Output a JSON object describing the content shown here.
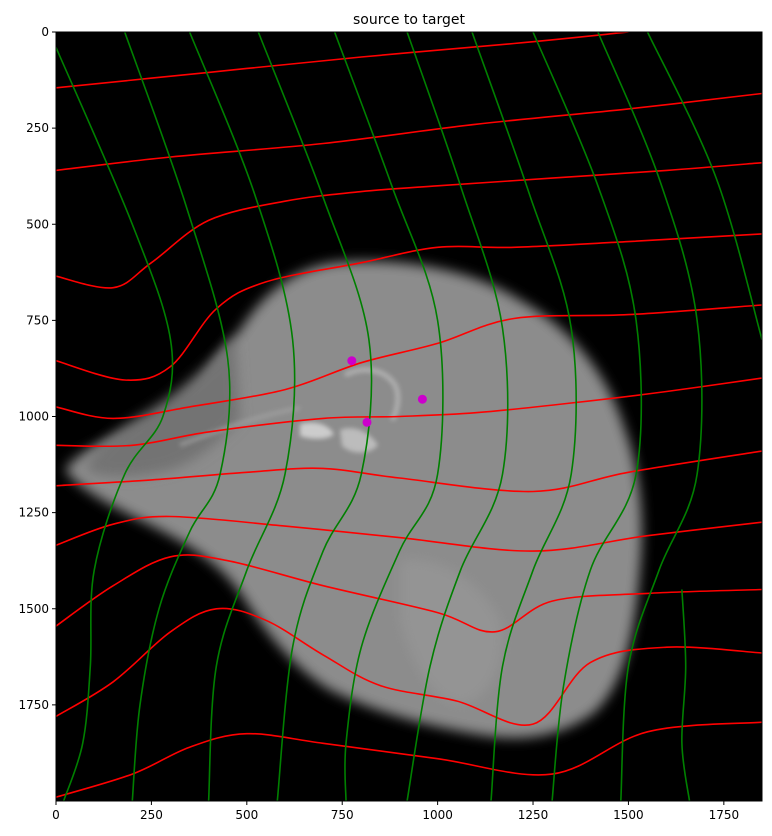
{
  "chart_data": {
    "type": "image",
    "title": "source to target",
    "xlabel": "",
    "ylabel": "",
    "xlim": [
      0,
      1850
    ],
    "ylim": [
      2000,
      0
    ],
    "y_inverted": true,
    "grid": false,
    "x_ticks": [
      0,
      250,
      500,
      750,
      1000,
      1250,
      1500,
      1750
    ],
    "y_ticks": [
      0,
      250,
      500,
      750,
      1000,
      1250,
      1500,
      1750
    ],
    "background": "#000000",
    "colors": {
      "horizontal_grid_lines": "#ff0000",
      "vertical_grid_lines": "#008000",
      "landmarks": "#cc00cc",
      "tissue": "#8c8c8c"
    },
    "landmarks": [
      {
        "x": 775,
        "y": 855
      },
      {
        "x": 960,
        "y": 955
      },
      {
        "x": 815,
        "y": 1015
      }
    ],
    "red_lines": [
      [
        [
          0,
          145
        ],
        [
          400,
          105
        ],
        [
          800,
          65
        ],
        [
          1200,
          30
        ],
        [
          1500,
          0
        ]
      ],
      [
        [
          0,
          360
        ],
        [
          300,
          325
        ],
        [
          700,
          290
        ],
        [
          1100,
          240
        ],
        [
          1500,
          200
        ],
        [
          1850,
          160
        ]
      ],
      [
        [
          0,
          635
        ],
        [
          150,
          665
        ],
        [
          250,
          600
        ],
        [
          400,
          490
        ],
        [
          600,
          440
        ],
        [
          800,
          415
        ],
        [
          1000,
          400
        ],
        [
          1300,
          380
        ],
        [
          1600,
          360
        ],
        [
          1850,
          340
        ]
      ],
      [
        [
          0,
          855
        ],
        [
          180,
          905
        ],
        [
          300,
          870
        ],
        [
          420,
          720
        ],
        [
          550,
          650
        ],
        [
          800,
          600
        ],
        [
          1000,
          560
        ],
        [
          1200,
          560
        ],
        [
          1500,
          545
        ],
        [
          1850,
          525
        ]
      ],
      [
        [
          0,
          975
        ],
        [
          150,
          1005
        ],
        [
          350,
          975
        ],
        [
          600,
          930
        ],
        [
          800,
          860
        ],
        [
          1000,
          810
        ],
        [
          1200,
          745
        ],
        [
          1500,
          735
        ],
        [
          1850,
          710
        ]
      ],
      [
        [
          0,
          1075
        ],
        [
          200,
          1075
        ],
        [
          400,
          1040
        ],
        [
          700,
          1005
        ],
        [
          900,
          1000
        ],
        [
          1100,
          990
        ],
        [
          1350,
          965
        ],
        [
          1600,
          935
        ],
        [
          1850,
          900
        ]
      ],
      [
        [
          0,
          1180
        ],
        [
          250,
          1165
        ],
        [
          500,
          1145
        ],
        [
          700,
          1135
        ],
        [
          900,
          1160
        ],
        [
          1250,
          1195
        ],
        [
          1500,
          1145
        ],
        [
          1850,
          1090
        ]
      ],
      [
        [
          0,
          1335
        ],
        [
          150,
          1280
        ],
        [
          300,
          1260
        ],
        [
          600,
          1285
        ],
        [
          900,
          1315
        ],
        [
          1250,
          1350
        ],
        [
          1550,
          1310
        ],
        [
          1850,
          1275
        ]
      ],
      [
        [
          0,
          1545
        ],
        [
          150,
          1440
        ],
        [
          300,
          1365
        ],
        [
          450,
          1375
        ],
        [
          700,
          1440
        ],
        [
          1000,
          1510
        ],
        [
          1150,
          1560
        ],
        [
          1300,
          1480
        ],
        [
          1550,
          1460
        ],
        [
          1850,
          1450
        ]
      ],
      [
        [
          0,
          1780
        ],
        [
          150,
          1690
        ],
        [
          300,
          1560
        ],
        [
          420,
          1500
        ],
        [
          550,
          1530
        ],
        [
          700,
          1620
        ],
        [
          850,
          1700
        ],
        [
          1050,
          1740
        ],
        [
          1250,
          1800
        ],
        [
          1400,
          1640
        ],
        [
          1600,
          1600
        ],
        [
          1850,
          1615
        ]
      ],
      [
        [
          0,
          1990
        ],
        [
          200,
          1930
        ],
        [
          350,
          1860
        ],
        [
          500,
          1825
        ],
        [
          700,
          1850
        ],
        [
          1000,
          1890
        ],
        [
          1300,
          1930
        ],
        [
          1550,
          1820
        ],
        [
          1850,
          1795
        ]
      ]
    ],
    "green_lines": [
      [
        [
          0,
          40
        ],
        [
          200,
          500
        ],
        [
          300,
          800
        ],
        [
          280,
          1000
        ],
        [
          180,
          1150
        ],
        [
          100,
          1400
        ],
        [
          90,
          1650
        ],
        [
          70,
          1850
        ],
        [
          20,
          2000
        ]
      ],
      [
        [
          180,
          0
        ],
        [
          340,
          450
        ],
        [
          450,
          850
        ],
        [
          430,
          1150
        ],
        [
          350,
          1300
        ],
        [
          270,
          1500
        ],
        [
          220,
          1750
        ],
        [
          200,
          2000
        ]
      ],
      [
        [
          350,
          0
        ],
        [
          520,
          420
        ],
        [
          620,
          800
        ],
        [
          600,
          1150
        ],
        [
          500,
          1400
        ],
        [
          420,
          1650
        ],
        [
          400,
          2000
        ]
      ],
      [
        [
          530,
          0
        ],
        [
          700,
          430
        ],
        [
          820,
          800
        ],
        [
          800,
          1150
        ],
        [
          700,
          1350
        ],
        [
          620,
          1600
        ],
        [
          580,
          2000
        ]
      ],
      [
        [
          730,
          0
        ],
        [
          880,
          400
        ],
        [
          1000,
          750
        ],
        [
          1000,
          1150
        ],
        [
          900,
          1350
        ],
        [
          800,
          1600
        ],
        [
          760,
          1850
        ],
        [
          760,
          2000
        ]
      ],
      [
        [
          920,
          0
        ],
        [
          1060,
          400
        ],
        [
          1170,
          770
        ],
        [
          1170,
          1150
        ],
        [
          1060,
          1400
        ],
        [
          980,
          1650
        ],
        [
          920,
          2000
        ]
      ],
      [
        [
          1090,
          0
        ],
        [
          1240,
          420
        ],
        [
          1350,
          770
        ],
        [
          1350,
          1150
        ],
        [
          1250,
          1400
        ],
        [
          1170,
          1650
        ],
        [
          1140,
          2000
        ]
      ],
      [
        [
          1250,
          0
        ],
        [
          1420,
          400
        ],
        [
          1520,
          750
        ],
        [
          1520,
          1150
        ],
        [
          1400,
          1400
        ],
        [
          1330,
          1700
        ],
        [
          1300,
          2000
        ]
      ],
      [
        [
          1420,
          0
        ],
        [
          1580,
          380
        ],
        [
          1680,
          750
        ],
        [
          1680,
          1150
        ],
        [
          1580,
          1400
        ],
        [
          1500,
          1650
        ],
        [
          1480,
          2000
        ]
      ],
      [
        [
          1550,
          0
        ],
        [
          1730,
          380
        ],
        [
          1850,
          800
        ]
      ],
      [
        [
          1640,
          1450
        ],
        [
          1650,
          1650
        ],
        [
          1640,
          1850
        ],
        [
          1660,
          2000
        ]
      ]
    ]
  }
}
